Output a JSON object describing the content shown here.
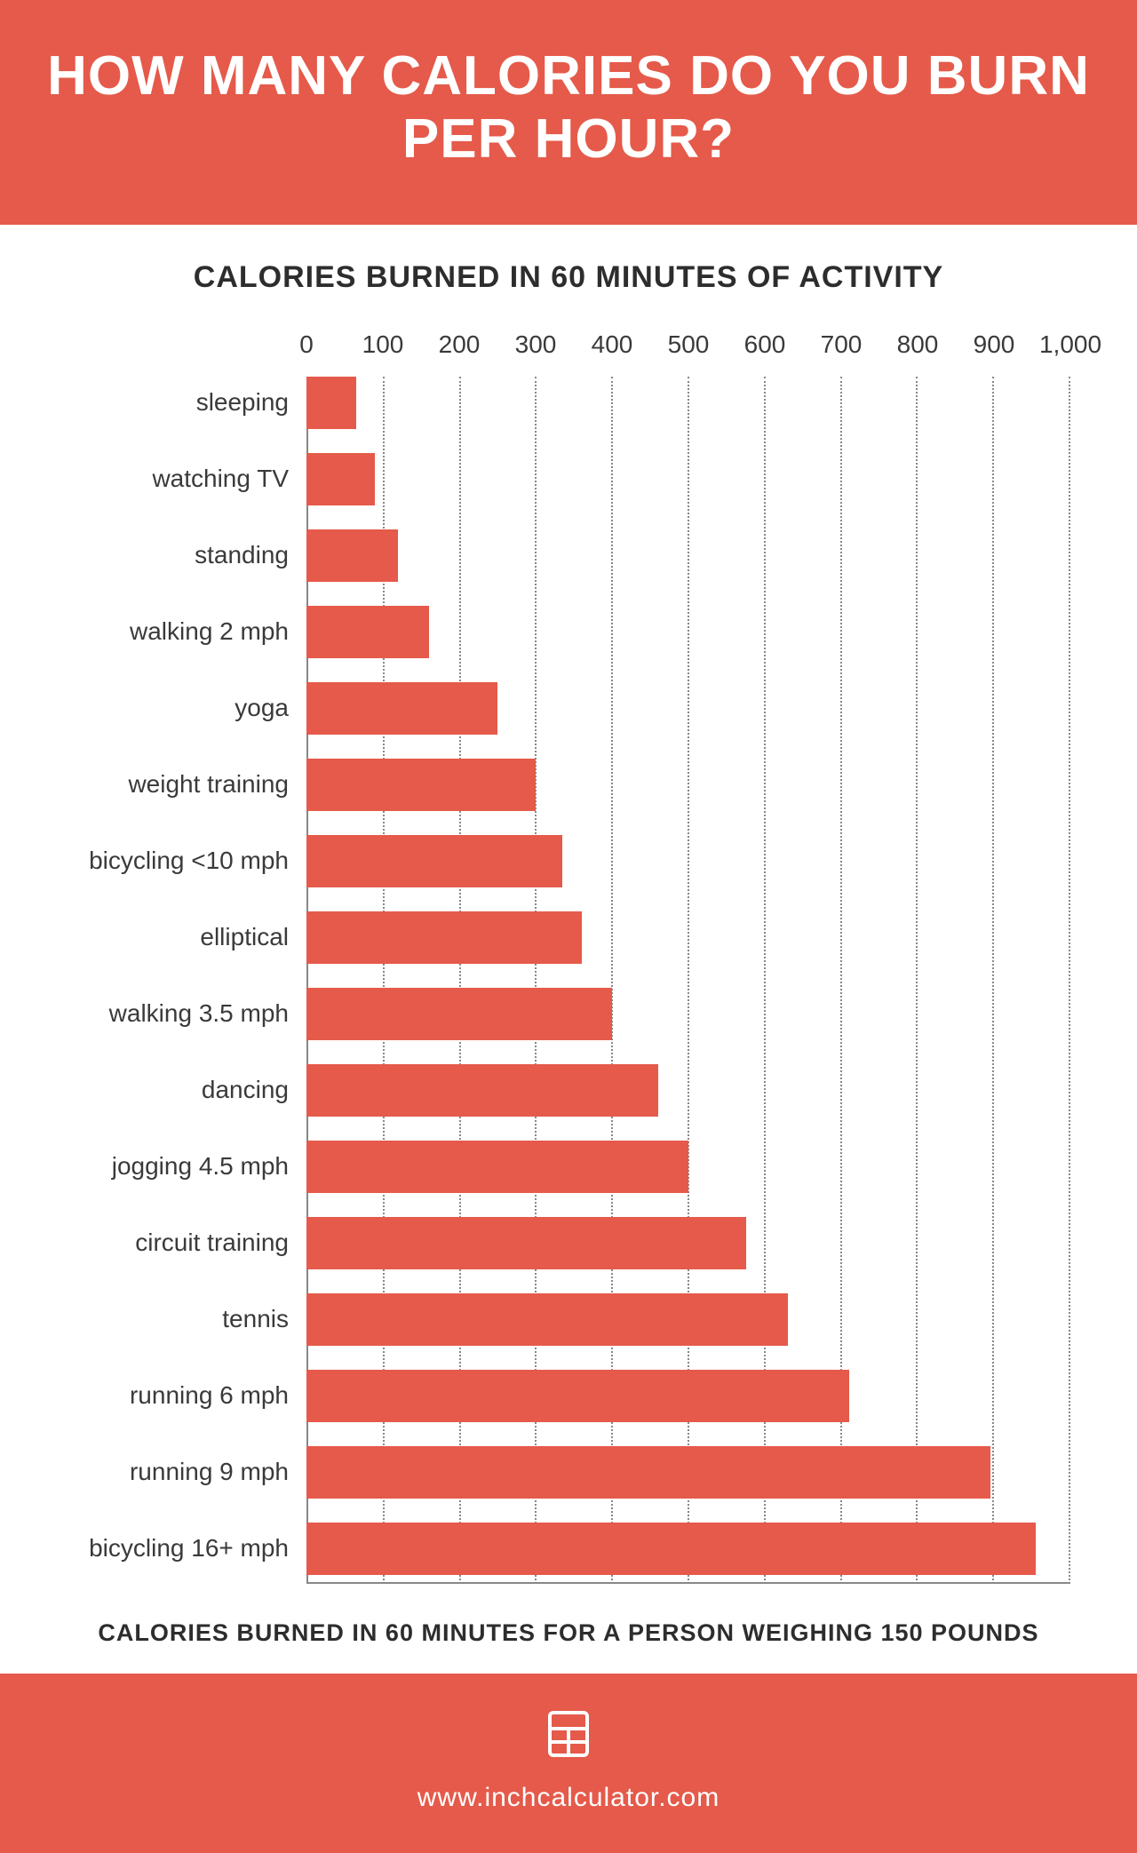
{
  "header": {
    "title": "HOW MANY CALORIES DO YOU BURN PER HOUR?",
    "background_color": "#e55a4a",
    "text_color": "#ffffff",
    "title_fontsize": 62
  },
  "chart": {
    "type": "bar",
    "subtitle": "CALORIES BURNED IN 60 MINUTES OF ACTIVITY",
    "subtitle_fontsize": 34,
    "subtitle_color": "#2d2d2d",
    "xmax": 1000,
    "xtick_step": 100,
    "xticks": [
      "0",
      "100",
      "200",
      "300",
      "400",
      "500",
      "600",
      "700",
      "800",
      "900",
      "1,000"
    ],
    "tick_fontsize": 28,
    "tick_color": "#3a3a3a",
    "label_fontsize": 28,
    "label_color": "#3a3a3a",
    "bar_color": "#e55a4a",
    "grid_color": "#888888",
    "background_color": "#ffffff",
    "bars": [
      {
        "label": "sleeping",
        "value": 65
      },
      {
        "label": "watching TV",
        "value": 90
      },
      {
        "label": "standing",
        "value": 120
      },
      {
        "label": "walking 2 mph",
        "value": 160
      },
      {
        "label": "yoga",
        "value": 250
      },
      {
        "label": "weight training",
        "value": 300
      },
      {
        "label": "bicycling <10 mph",
        "value": 335
      },
      {
        "label": "elliptical",
        "value": 360
      },
      {
        "label": "walking 3.5 mph",
        "value": 400
      },
      {
        "label": "dancing",
        "value": 460
      },
      {
        "label": "jogging 4.5 mph",
        "value": 500
      },
      {
        "label": "circuit training",
        "value": 575
      },
      {
        "label": "tennis",
        "value": 630
      },
      {
        "label": "running 6 mph",
        "value": 710
      },
      {
        "label": "running 9 mph",
        "value": 895
      },
      {
        "label": "bicycling 16+ mph",
        "value": 955
      }
    ],
    "caption": "CALORIES BURNED IN 60 MINUTES FOR A PERSON WEIGHING 150 POUNDS",
    "caption_fontsize": 27,
    "caption_color": "#2d2d2d"
  },
  "footer": {
    "background_color": "#e55a4a",
    "text_color": "#ffffff",
    "url": "www.inchcalculator.com",
    "url_fontsize": 30,
    "icon_name": "calculator-icon"
  }
}
